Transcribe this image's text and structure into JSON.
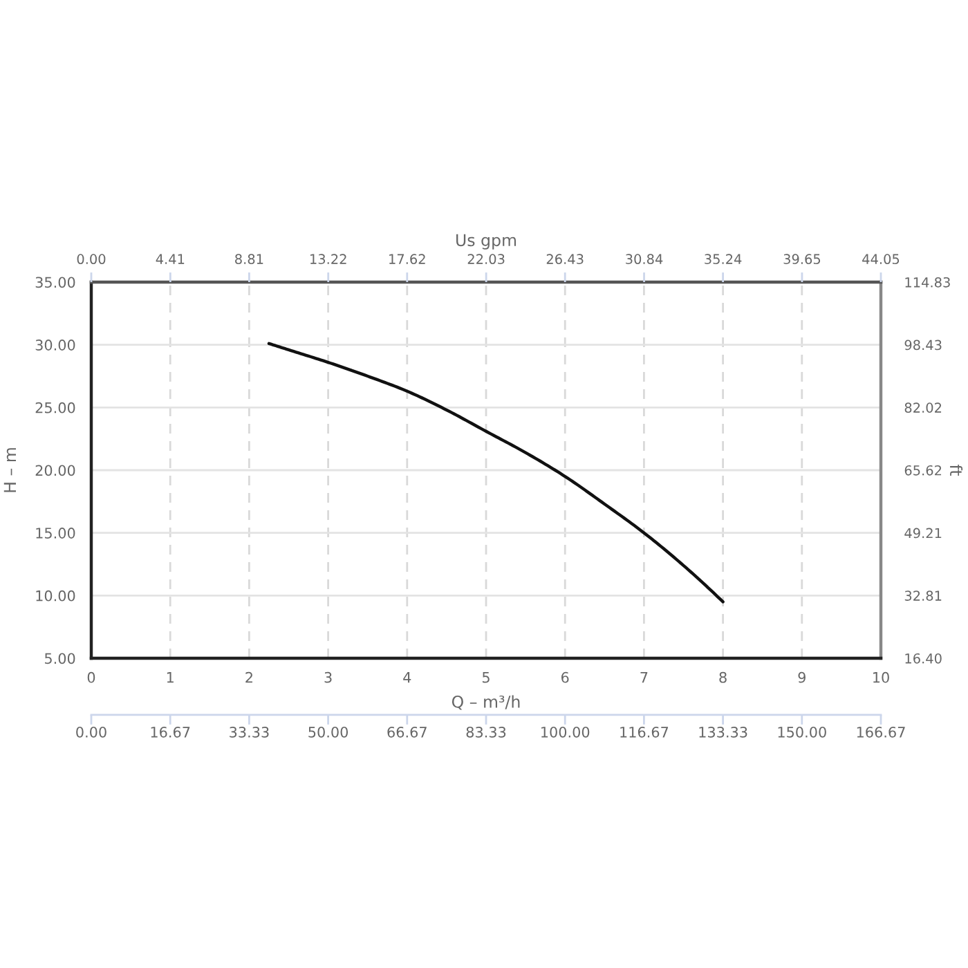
{
  "chart_data": {
    "type": "line",
    "xlabel": "Q – m³/h",
    "ylabel": "H – m",
    "x2label": "Us gpm",
    "y2label": "ft",
    "xlim": [
      0,
      10
    ],
    "xticks": [
      0,
      1,
      2,
      3,
      4,
      5,
      6,
      7,
      8,
      9,
      10
    ],
    "x2lim": [
      0,
      44.05
    ],
    "x2ticks": [
      {
        "value": 0,
        "label": "0.00"
      },
      {
        "value": 4.41,
        "label": "4.41"
      },
      {
        "value": 8.81,
        "label": "8.81"
      },
      {
        "value": 13.22,
        "label": "13.22"
      },
      {
        "value": 17.62,
        "label": "17.62"
      },
      {
        "value": 22.03,
        "label": "22.03"
      },
      {
        "value": 26.43,
        "label": "26.43"
      },
      {
        "value": 30.84,
        "label": "30.84"
      },
      {
        "value": 35.24,
        "label": "35.24"
      },
      {
        "value": 39.65,
        "label": "39.65"
      },
      {
        "value": 44.05,
        "label": "44.05"
      }
    ],
    "annotations": [
      "0.00",
      "16.67",
      "33.33",
      "50.00",
      "66.67",
      "83.33",
      "100.00",
      "116.67",
      "133.33",
      "150.00",
      "166.67"
    ],
    "ylim": [
      5,
      35
    ],
    "yticks": [
      {
        "value": 5,
        "label": "5.00"
      },
      {
        "value": 10,
        "label": "10.00"
      },
      {
        "value": 15,
        "label": "15.00"
      },
      {
        "value": 20,
        "label": "20.00"
      },
      {
        "value": 25,
        "label": "25.00"
      },
      {
        "value": 30,
        "label": "30.00"
      },
      {
        "value": 35,
        "label": "35.00"
      }
    ],
    "y2lim": [
      16.4,
      114.83
    ],
    "y2ticks": [
      {
        "value": 16.4,
        "label": "16.40"
      },
      32.81,
      49.21,
      65.62,
      82.02,
      98.43,
      114.83
    ],
    "grid": true,
    "line_style": "solid",
    "series": [
      {
        "color": "#111111",
        "x": [
          2.25,
          2.5,
          3,
          3.5,
          4,
          4.5,
          5,
          5.5,
          6,
          6.5,
          7,
          7.5,
          8
        ],
        "values": [
          30.1,
          29.6,
          28.6,
          27.5,
          26.3,
          24.8,
          23.1,
          21.4,
          19.5,
          17.3,
          15.0,
          12.4,
          9.5
        ]
      }
    ]
  }
}
